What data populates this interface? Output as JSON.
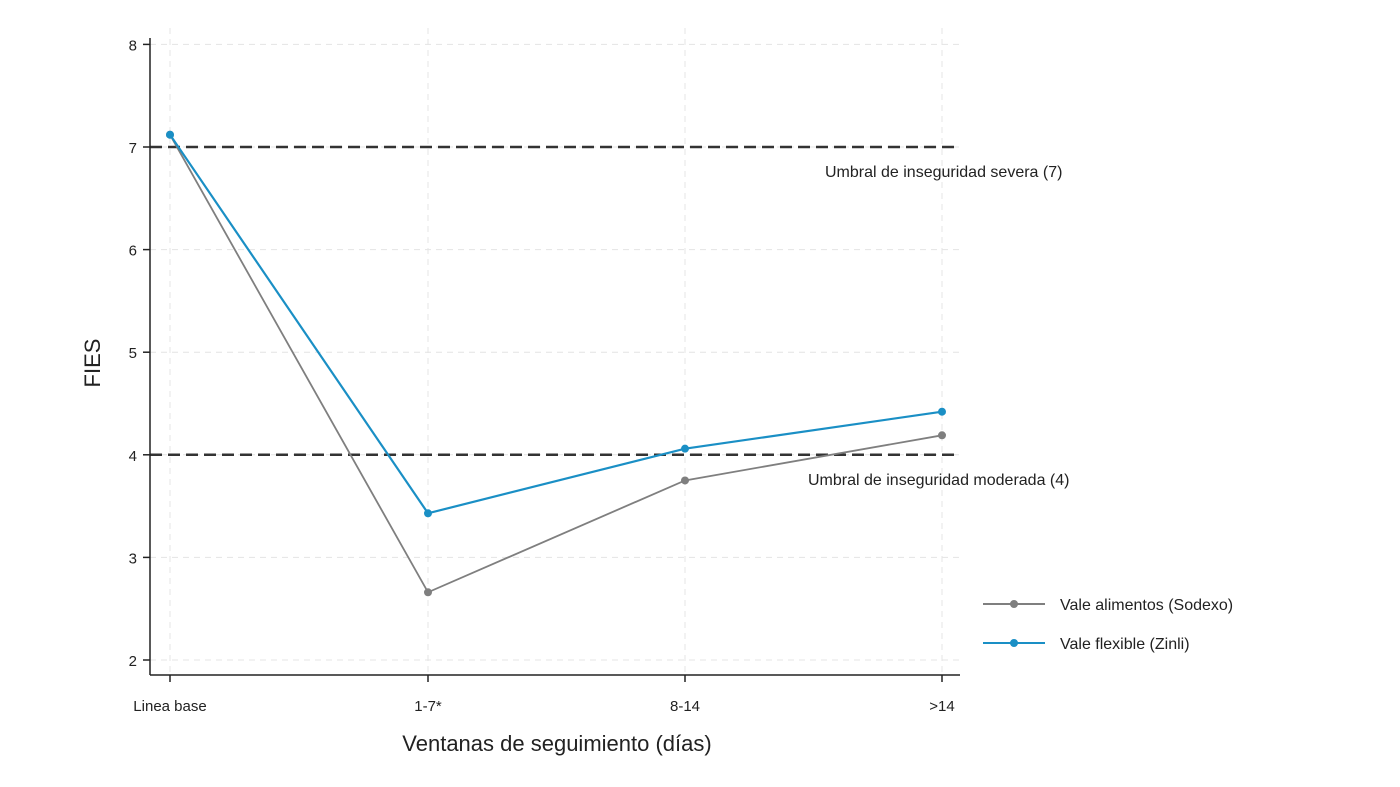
{
  "chart_data": {
    "type": "line",
    "title": "",
    "xlabel": "Ventanas de seguimiento (días)",
    "ylabel": "FIES",
    "categories": [
      "Linea base",
      "1-7*",
      "8-14",
      ">14"
    ],
    "ylim": [
      1.85,
      8.05
    ],
    "yticks": [
      2,
      3,
      4,
      5,
      6,
      7,
      8
    ],
    "grid": true,
    "legend_position": "right",
    "series": [
      {
        "name": "Vale alimentos (Sodexo)",
        "color": "#7f7f7f",
        "values": [
          7.12,
          2.66,
          3.75,
          4.19
        ]
      },
      {
        "name": "Vale flexible (Zinli)",
        "color": "#1a8fc5",
        "values": [
          7.12,
          3.43,
          4.06,
          4.42
        ]
      }
    ],
    "reference_lines": [
      {
        "y": 7,
        "label": "Umbral de inseguridad severa (7)"
      },
      {
        "y": 4,
        "label": "Umbral de inseguridad moderada (4)"
      }
    ]
  }
}
